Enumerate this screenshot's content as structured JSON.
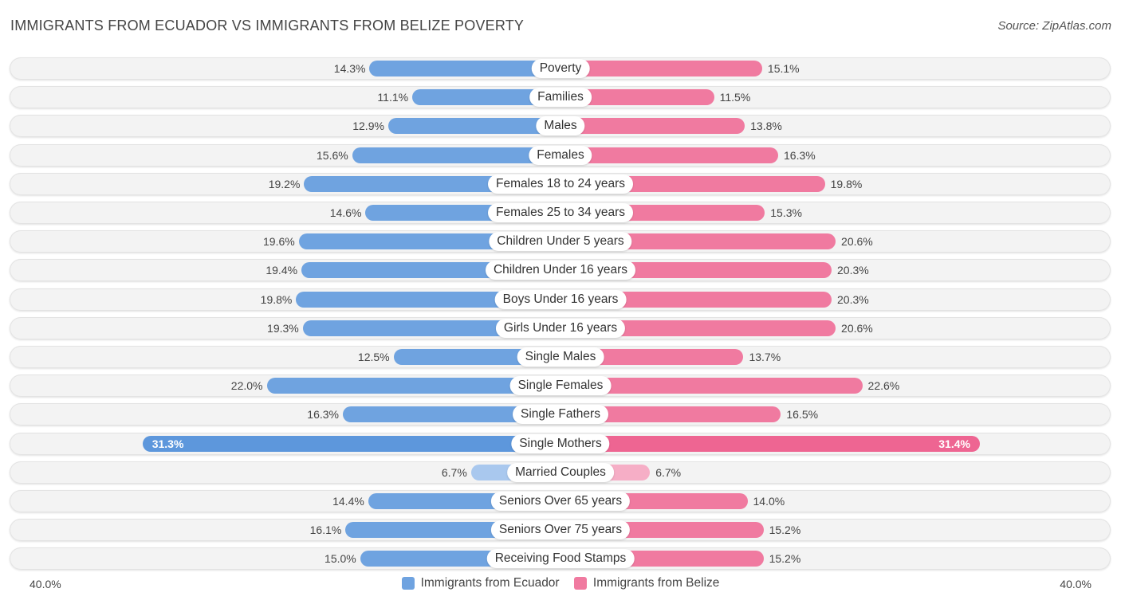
{
  "header": {
    "title": "IMMIGRANTS FROM ECUADOR VS IMMIGRANTS FROM BELIZE POVERTY",
    "source": "Source: ZipAtlas.com"
  },
  "colors": {
    "ecuador": "#6fa3e0",
    "ecuador_light": "#a9c8ee",
    "belize": "#f07aa0",
    "belize_light": "#f6aec6"
  },
  "chart_data": {
    "type": "bar",
    "title": "IMMIGRANTS FROM ECUADOR VS IMMIGRANTS FROM BELIZE POVERTY",
    "orientation": "horizontal-diverging",
    "xlim": [
      -40,
      40
    ],
    "axis_min_label": "40.0%",
    "axis_max_label": "40.0%",
    "categories": [
      "Poverty",
      "Families",
      "Males",
      "Females",
      "Females 18 to 24 years",
      "Females 25 to 34 years",
      "Children Under 5 years",
      "Children Under 16 years",
      "Boys Under 16 years",
      "Girls Under 16 years",
      "Single Males",
      "Single Females",
      "Single Fathers",
      "Single Mothers",
      "Married Couples",
      "Seniors Over 65 years",
      "Seniors Over 75 years",
      "Receiving Food Stamps"
    ],
    "series": [
      {
        "name": "Immigrants from Ecuador",
        "values": [
          14.3,
          11.1,
          12.9,
          15.6,
          19.2,
          14.6,
          19.6,
          19.4,
          19.8,
          19.3,
          12.5,
          22.0,
          16.3,
          31.3,
          6.7,
          14.4,
          16.1,
          15.0
        ],
        "labels": [
          "14.3%",
          "11.1%",
          "12.9%",
          "15.6%",
          "19.2%",
          "14.6%",
          "19.6%",
          "19.4%",
          "19.8%",
          "19.3%",
          "12.5%",
          "22.0%",
          "16.3%",
          "31.3%",
          "6.7%",
          "14.4%",
          "16.1%",
          "15.0%"
        ]
      },
      {
        "name": "Immigrants from Belize",
        "values": [
          15.1,
          11.5,
          13.8,
          16.3,
          19.8,
          15.3,
          20.6,
          20.3,
          20.3,
          20.6,
          13.7,
          22.6,
          16.5,
          31.4,
          6.7,
          14.0,
          15.2,
          15.2
        ],
        "labels": [
          "15.1%",
          "11.5%",
          "13.8%",
          "16.3%",
          "19.8%",
          "15.3%",
          "20.6%",
          "20.3%",
          "20.3%",
          "20.6%",
          "13.7%",
          "22.6%",
          "16.5%",
          "31.4%",
          "6.7%",
          "14.0%",
          "15.2%",
          "15.2%"
        ]
      }
    ],
    "legend": [
      "Immigrants from Ecuador",
      "Immigrants from Belize"
    ],
    "legend_position": "bottom-center"
  }
}
